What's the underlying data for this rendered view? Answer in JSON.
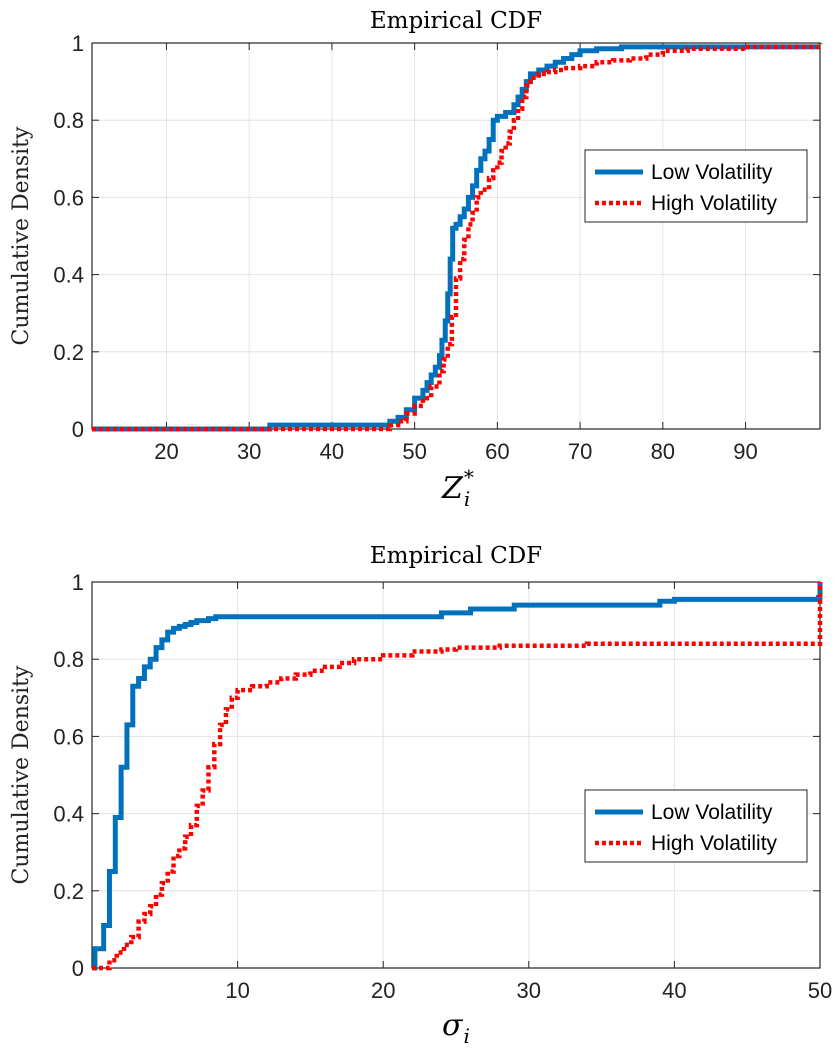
{
  "chart_data": [
    {
      "type": "line",
      "title": "Empirical CDF",
      "xlabel_symbol": "Z",
      "xlabel_subscript": "i",
      "xlabel_superscript": "*",
      "ylabel": "Cumulative Density",
      "xlim": [
        11,
        99
      ],
      "ylim": [
        0,
        1
      ],
      "xticks": [
        20,
        30,
        40,
        50,
        60,
        70,
        80,
        90
      ],
      "yticks": [
        0,
        0.2,
        0.4,
        0.6,
        0.8,
        1
      ],
      "ytick_labels": [
        "0",
        "0.2",
        "0.4",
        "0.6",
        "0.8",
        "1"
      ],
      "grid": true,
      "legend_position": "right-center",
      "series": [
        {
          "name": "Low Volatility",
          "style": "solid",
          "color": "#0072BD",
          "x": [
            11,
            32,
            32.5,
            46,
            47,
            48,
            49,
            50,
            51,
            51.5,
            52,
            52.5,
            53,
            53.3,
            53.7,
            54,
            54.3,
            54.6,
            55,
            55.5,
            56,
            56.5,
            57,
            57.5,
            58,
            58.5,
            59,
            59.5,
            60,
            61,
            62,
            62.5,
            63,
            63.5,
            64,
            65,
            66,
            67,
            68,
            69,
            70,
            72,
            75,
            99
          ],
          "y": [
            0,
            0,
            0.01,
            0.01,
            0.02,
            0.03,
            0.05,
            0.08,
            0.1,
            0.12,
            0.14,
            0.16,
            0.19,
            0.23,
            0.28,
            0.35,
            0.44,
            0.52,
            0.53,
            0.55,
            0.57,
            0.6,
            0.63,
            0.67,
            0.7,
            0.72,
            0.75,
            0.8,
            0.81,
            0.82,
            0.84,
            0.86,
            0.88,
            0.9,
            0.92,
            0.93,
            0.94,
            0.95,
            0.96,
            0.97,
            0.98,
            0.985,
            0.99,
            0.99
          ]
        },
        {
          "name": "High Volatility",
          "style": "dotted",
          "color": "#FF0000",
          "x": [
            11,
            46,
            47,
            48,
            49,
            50,
            51,
            52,
            53,
            53.5,
            54,
            54.5,
            55,
            55.5,
            56,
            56.5,
            57,
            57.5,
            58,
            59,
            59.5,
            60,
            60.5,
            61,
            61.5,
            62,
            62.5,
            63,
            63.5,
            64,
            65,
            66,
            67,
            68,
            70,
            72,
            74,
            76,
            78,
            80,
            83,
            90,
            98,
            99
          ],
          "y": [
            0,
            0,
            0.01,
            0.02,
            0.04,
            0.06,
            0.08,
            0.11,
            0.15,
            0.18,
            0.22,
            0.29,
            0.39,
            0.44,
            0.49,
            0.53,
            0.56,
            0.6,
            0.62,
            0.65,
            0.67,
            0.69,
            0.72,
            0.74,
            0.77,
            0.8,
            0.83,
            0.86,
            0.89,
            0.91,
            0.92,
            0.925,
            0.93,
            0.935,
            0.94,
            0.95,
            0.955,
            0.96,
            0.97,
            0.98,
            0.985,
            0.99,
            0.99,
            1
          ]
        }
      ]
    },
    {
      "type": "line",
      "title": "Empirical CDF",
      "xlabel_symbol": "σ",
      "xlabel_subscript": "i",
      "xlabel_superscript": "",
      "ylabel": "Cumulative Density",
      "xlim": [
        0,
        50
      ],
      "ylim": [
        0,
        1
      ],
      "xticks": [
        10,
        20,
        30,
        40,
        50
      ],
      "yticks": [
        0,
        0.2,
        0.4,
        0.6,
        0.8,
        1
      ],
      "ytick_labels": [
        "0",
        "0.2",
        "0.4",
        "0.6",
        "0.8",
        "1"
      ],
      "grid": true,
      "legend_position": "right-center",
      "series": [
        {
          "name": "Low Volatility",
          "style": "solid",
          "color": "#0072BD",
          "x": [
            0,
            0.2,
            0.8,
            1.2,
            1.6,
            2,
            2.4,
            2.8,
            3.2,
            3.6,
            4,
            4.4,
            4.8,
            5.2,
            5.6,
            6,
            6.4,
            6.8,
            7.2,
            7.6,
            8,
            8.5,
            9,
            12,
            15,
            18,
            22,
            24,
            26,
            29,
            35,
            39,
            40,
            49.9,
            50
          ],
          "y": [
            0,
            0.05,
            0.11,
            0.25,
            0.39,
            0.52,
            0.63,
            0.73,
            0.75,
            0.78,
            0.8,
            0.83,
            0.85,
            0.87,
            0.88,
            0.885,
            0.89,
            0.895,
            0.9,
            0.9,
            0.905,
            0.91,
            0.91,
            0.91,
            0.91,
            0.91,
            0.91,
            0.92,
            0.93,
            0.94,
            0.94,
            0.95,
            0.955,
            0.96,
            1
          ]
        },
        {
          "name": "High Volatility",
          "style": "dotted",
          "color": "#FF0000",
          "x": [
            0,
            0.6,
            1.2,
            1.7,
            2.2,
            2.7,
            3.2,
            3.6,
            4,
            4.4,
            4.8,
            5.2,
            5.6,
            6,
            6.4,
            6.8,
            7.2,
            7.6,
            8,
            8.4,
            8.8,
            9.2,
            9.6,
            10,
            11,
            12,
            13,
            14,
            15,
            16,
            17,
            18,
            20,
            22,
            24,
            25,
            28,
            33,
            34,
            49.9,
            50
          ],
          "y": [
            0,
            0,
            0.02,
            0.04,
            0.06,
            0.08,
            0.12,
            0.14,
            0.16,
            0.19,
            0.22,
            0.25,
            0.29,
            0.31,
            0.34,
            0.37,
            0.42,
            0.46,
            0.52,
            0.58,
            0.63,
            0.67,
            0.7,
            0.72,
            0.73,
            0.74,
            0.75,
            0.76,
            0.77,
            0.78,
            0.79,
            0.8,
            0.81,
            0.82,
            0.825,
            0.83,
            0.835,
            0.835,
            0.84,
            0.84,
            1
          ]
        }
      ]
    }
  ]
}
